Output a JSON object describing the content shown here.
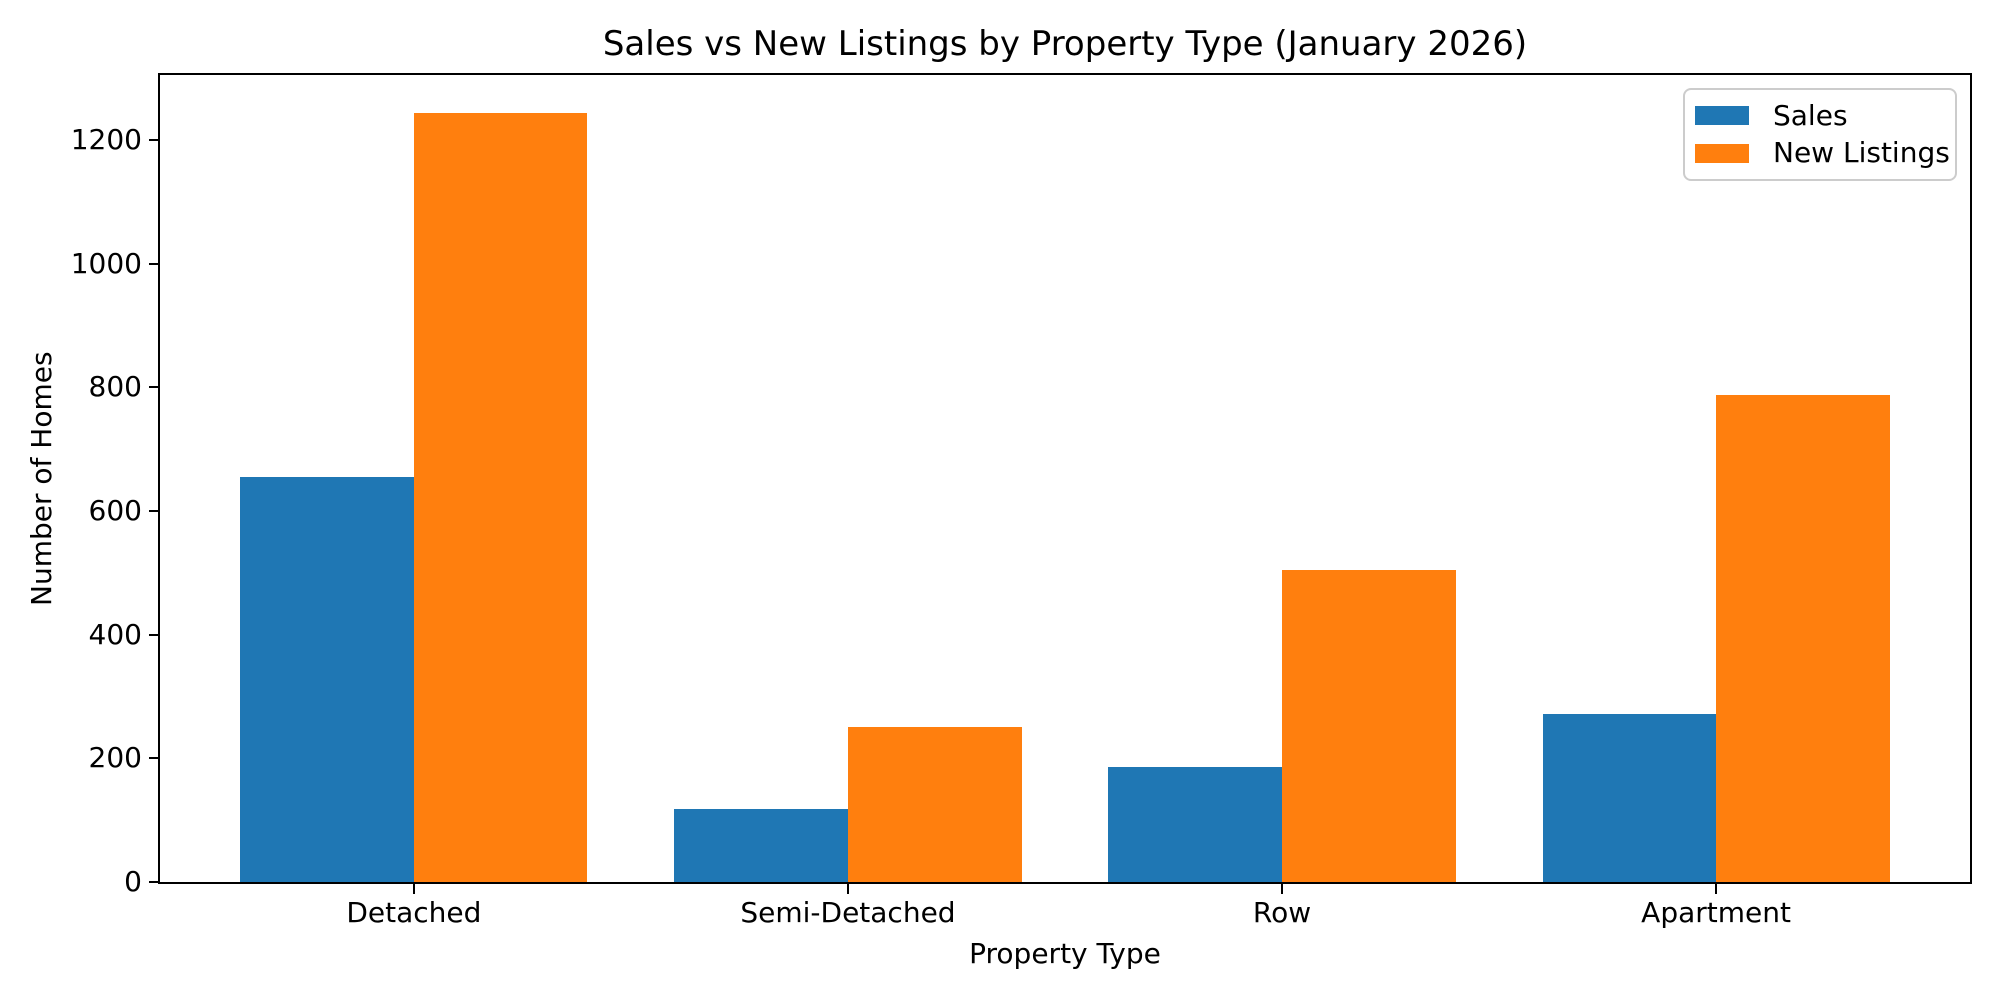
{
  "chart_data": {
    "type": "bar",
    "title": "Sales vs New Listings by Property Type (January 2026)",
    "xlabel": "Property Type",
    "ylabel": "Number of Homes",
    "categories": [
      "Detached",
      "Semi-Detached",
      "Row",
      "Apartment"
    ],
    "series": [
      {
        "name": "Sales",
        "color": "#1f77b4",
        "values": [
          655,
          118,
          186,
          272
        ]
      },
      {
        "name": "New Listings",
        "color": "#ff7f0e",
        "values": [
          1244,
          250,
          504,
          787
        ]
      }
    ],
    "yticks": [
      0,
      200,
      400,
      600,
      800,
      1000,
      1200
    ],
    "ylim": [
      0,
      1305
    ],
    "xlim": [
      -0.585,
      3.585
    ],
    "bar_width": 0.4,
    "grid": false,
    "legend_position": "upper right",
    "colors": {
      "axis": "#000000",
      "legend_border": "#cccccc",
      "background": "#ffffff"
    }
  }
}
